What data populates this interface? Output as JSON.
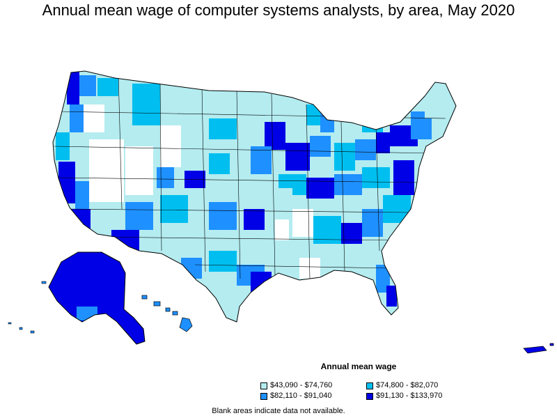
{
  "title": "Annual mean wage of computer systems analysts, by area, May 2020",
  "legend": {
    "title": "Annual mean wage",
    "items": [
      {
        "label": "$43,090 - $74,760",
        "color": "#b4ecf0"
      },
      {
        "label": "$74,800 - $82,070",
        "color": "#00bff0"
      },
      {
        "label": "$82,110 - $91,040",
        "color": "#1e90ff"
      },
      {
        "label": "$91,130 - $133,970",
        "color": "#0000e6"
      }
    ]
  },
  "no_data_color": "#ffffff",
  "footnote": "Blank areas indicate data not available."
}
